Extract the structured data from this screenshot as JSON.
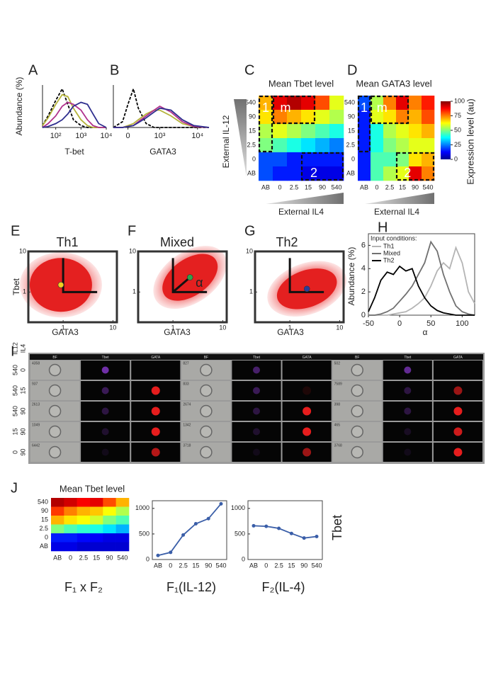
{
  "chart_data": [
    {
      "panel": "A",
      "type": "line",
      "xlabel": "T-bet",
      "ylabel": "Abundance (%)",
      "xscale": "log",
      "x": [
        30,
        50,
        100,
        180,
        300,
        500,
        1000,
        1800,
        3000,
        5000,
        10000
      ],
      "xlim": [
        30,
        10000
      ],
      "xticks": [
        {
          "value": 100,
          "label": "10²"
        },
        {
          "value": 1000,
          "label": "10³"
        },
        {
          "value": 10000,
          "label": "10⁴"
        }
      ],
      "ylim": [
        0,
        2.2
      ],
      "series": [
        {
          "color": "#000000",
          "dash": true,
          "values": [
            0.1,
            0.6,
            1.4,
            2.0,
            1.2,
            0.4,
            0.1,
            0,
            0,
            0,
            0
          ]
        },
        {
          "color": "#b5b33a",
          "values": [
            0.1,
            0.5,
            1.2,
            1.7,
            1.6,
            1.0,
            0.4,
            0.1,
            0,
            0,
            0
          ]
        },
        {
          "color": "#b0308c",
          "values": [
            0,
            0.2,
            0.6,
            1.1,
            1.3,
            1.2,
            0.9,
            0.4,
            0.1,
            0,
            0
          ]
        },
        {
          "color": "#2e2e8e",
          "values": [
            0,
            0.05,
            0.2,
            0.4,
            0.7,
            1.1,
            1.3,
            1.2,
            0.7,
            0.2,
            0
          ]
        }
      ]
    },
    {
      "panel": "B",
      "type": "line",
      "xlabel": "GATA3",
      "xscale": "asinh",
      "x": [
        -300,
        -100,
        0,
        100,
        200,
        400,
        700,
        1000,
        2000,
        4000,
        8000,
        20000
      ],
      "xlim": [
        -300,
        20000
      ],
      "xticks": [
        0,
        {
          "value": 1000,
          "label": "10³"
        },
        {
          "value": 10000,
          "label": "10⁴"
        }
      ],
      "ylim": [
        0,
        2.2
      ],
      "series": [
        {
          "color": "#000000",
          "dash": true,
          "values": [
            0,
            0.3,
            1.2,
            2.0,
            1.0,
            0.2,
            0,
            0,
            0,
            0,
            0,
            0
          ]
        },
        {
          "color": "#b5b33a",
          "values": [
            0,
            0,
            0.1,
            0.2,
            0.4,
            0.7,
            0.9,
            0.9,
            0.6,
            0.2,
            0.05,
            0
          ]
        },
        {
          "color": "#b0308c",
          "values": [
            0,
            0,
            0.05,
            0.1,
            0.3,
            0.6,
            0.9,
            1.1,
            0.8,
            0.3,
            0.05,
            0
          ]
        },
        {
          "color": "#2e2e8e",
          "values": [
            0,
            0,
            0.05,
            0.1,
            0.25,
            0.5,
            0.8,
            1.0,
            0.9,
            0.4,
            0.1,
            0
          ]
        }
      ]
    },
    {
      "panel": "C",
      "type": "heatmap",
      "title": "Mean Tbet level",
      "ylabel": "External IL-12",
      "xlabel": "External IL4",
      "rows": [
        "540",
        "90",
        "15",
        "2.5",
        "0",
        "AB"
      ],
      "columns": [
        "AB",
        "0",
        "2.5",
        "15",
        "90",
        "540"
      ],
      "zlim": [
        0,
        100
      ],
      "values": [
        [
          70,
          90,
          95,
          90,
          80,
          60
        ],
        [
          65,
          75,
          70,
          65,
          60,
          55
        ],
        [
          55,
          60,
          55,
          50,
          45,
          40
        ],
        [
          50,
          45,
          40,
          35,
          30,
          25
        ],
        [
          20,
          20,
          15,
          15,
          15,
          15
        ],
        [
          20,
          15,
          15,
          10,
          10,
          10
        ]
      ],
      "boxes": [
        {
          "label": "1",
          "rows": [
            0,
            3
          ],
          "cols": [
            0,
            0
          ]
        },
        {
          "label": "m",
          "rows": [
            0,
            1
          ],
          "cols": [
            1,
            3
          ]
        },
        {
          "label": "2",
          "rows": [
            4,
            5
          ],
          "cols": [
            3,
            5
          ]
        }
      ]
    },
    {
      "panel": "D",
      "type": "heatmap",
      "title": "Mean GATA3 level",
      "xlabel": "External IL4",
      "rows": [
        "540",
        "90",
        "15",
        "2.5",
        "0",
        "AB"
      ],
      "columns": [
        "AB",
        "0",
        "2.5",
        "15",
        "90",
        "540"
      ],
      "zlim": [
        0,
        100
      ],
      "values": [
        [
          20,
          55,
          75,
          90,
          75,
          85
        ],
        [
          15,
          60,
          65,
          75,
          70,
          80
        ],
        [
          15,
          40,
          55,
          60,
          65,
          70
        ],
        [
          15,
          40,
          50,
          55,
          60,
          60
        ],
        [
          15,
          45,
          45,
          50,
          65,
          70
        ],
        [
          15,
          45,
          55,
          60,
          90,
          75
        ]
      ],
      "boxes": [
        {
          "label": "1",
          "rows": [
            0,
            3
          ],
          "cols": [
            0,
            0
          ]
        },
        {
          "label": "m",
          "rows": [
            0,
            1
          ],
          "cols": [
            1,
            3
          ]
        },
        {
          "label": "2",
          "rows": [
            4,
            5
          ],
          "cols": [
            3,
            5
          ]
        }
      ],
      "colorbar": {
        "label": "Expression level (au)",
        "ticks": [
          0,
          25,
          50,
          75,
          100
        ]
      }
    },
    {
      "panel": "E",
      "type": "scatter",
      "title": "Th1",
      "xlabel": "GATA3",
      "ylabel": "Tbet",
      "xscale": "log",
      "yscale": "log",
      "xlim": [
        0.2,
        12
      ],
      "ylim": [
        0.18,
        10
      ],
      "xticks": [
        1,
        10
      ],
      "yticks": [
        1,
        10
      ],
      "mean": {
        "x": 0.9,
        "y": 1.5,
        "color": "#f0d020"
      }
    },
    {
      "panel": "F",
      "type": "scatter",
      "title": "Mixed",
      "xlabel": "GATA3",
      "xscale": "log",
      "yscale": "log",
      "annotation": "α",
      "xlim": [
        0.2,
        12
      ],
      "ylim": [
        0.18,
        10
      ],
      "xticks": [
        1,
        10
      ],
      "yticks": [
        1,
        10
      ],
      "mean": {
        "x": 2.2,
        "y": 2.3,
        "color": "#2fa34a"
      }
    },
    {
      "panel": "G",
      "type": "scatter",
      "title": "Th2",
      "xlabel": "GATA3",
      "xscale": "log",
      "yscale": "log",
      "xlim": [
        0.2,
        12
      ],
      "ylim": [
        0.18,
        10
      ],
      "xticks": [
        1,
        10
      ],
      "yticks": [
        1,
        10
      ],
      "mean": {
        "x": 2.2,
        "y": 1.2,
        "color": "#2a3d9a"
      }
    },
    {
      "panel": "H",
      "type": "line",
      "xlabel": "α",
      "ylabel": "Abundance (%)",
      "legend_title": "Input conditions:",
      "x": [
        -50,
        -40,
        -30,
        -20,
        -10,
        0,
        10,
        20,
        30,
        40,
        50,
        60,
        70,
        80,
        90,
        100,
        110,
        120
      ],
      "xlim": [
        -50,
        120
      ],
      "xticks": [
        -50,
        0,
        50,
        100
      ],
      "ylim": [
        0,
        7
      ],
      "yticks": [
        0,
        2,
        4,
        6
      ],
      "series": [
        {
          "name": "Th1",
          "color": "#b4b4b4",
          "values": [
            0,
            0,
            0,
            0,
            0.1,
            0.2,
            0.3,
            0.6,
            1.0,
            1.5,
            2.5,
            3.8,
            4.5,
            4.0,
            5.8,
            4.5,
            2.0,
            1.0
          ]
        },
        {
          "name": "Mixed",
          "color": "#707070",
          "values": [
            0,
            0,
            0.1,
            0.3,
            0.6,
            1.2,
            1.8,
            2.5,
            3.5,
            4.5,
            6.3,
            5.5,
            3.5,
            2.0,
            0.8,
            0.3,
            0.1,
            0
          ]
        },
        {
          "name": "Th2",
          "color": "#000000",
          "values": [
            0.3,
            1.5,
            3.0,
            3.7,
            3.5,
            4.2,
            3.8,
            4.0,
            2.5,
            1.5,
            0.8,
            0.4,
            0.2,
            0.1,
            0,
            0,
            0,
            0
          ]
        }
      ]
    },
    {
      "panel": "J",
      "type": "heatmap",
      "title": "Mean Tbet level",
      "caption": "F₁ x F₂",
      "rows": [
        "540",
        "90",
        "15",
        "2.5",
        "0",
        "AB"
      ],
      "columns": [
        "AB",
        "0",
        "2.5",
        "15",
        "90",
        "540"
      ],
      "zlim": [
        0,
        100
      ],
      "values": [
        [
          95,
          92,
          88,
          90,
          80,
          70
        ],
        [
          82,
          75,
          70,
          68,
          62,
          55
        ],
        [
          70,
          65,
          62,
          58,
          50,
          45
        ],
        [
          50,
          45,
          42,
          40,
          35,
          30
        ],
        [
          15,
          15,
          13,
          12,
          10,
          10
        ],
        [
          10,
          10,
          8,
          8,
          8,
          8
        ]
      ]
    },
    {
      "type": "line",
      "caption": "F₁(IL-12)",
      "markers": true,
      "categories": [
        "AB",
        "0",
        "2.5",
        "15",
        "90",
        "540"
      ],
      "ylim": [
        0,
        1150
      ],
      "yticks": [
        0,
        500,
        1000
      ],
      "series": [
        {
          "color": "#3a5ea8",
          "values": [
            80,
            140,
            480,
            700,
            800,
            1090
          ]
        }
      ]
    },
    {
      "type": "line",
      "caption": "F₂(IL-4)",
      "ylabel": "Tbet",
      "markers": true,
      "categories": [
        "AB",
        "0",
        "2.5",
        "15",
        "90",
        "540"
      ],
      "ylim": [
        0,
        1150
      ],
      "yticks": [
        0,
        500,
        1000
      ],
      "series": [
        {
          "color": "#3a5ea8",
          "values": [
            660,
            650,
            610,
            510,
            420,
            450
          ]
        }
      ]
    }
  ],
  "image_grid": {
    "panel": "I",
    "row_header": [
      "IL12",
      "IL4"
    ],
    "columns": [
      "BF",
      "Tbet",
      "GATA",
      "BF",
      "Tbet",
      "GATA",
      "BF",
      "Tbet",
      "GATA"
    ],
    "rows": [
      {
        "il12": "540",
        "il4": "0",
        "ids": [
          4358,
          827,
          502
        ],
        "tbet": [
          0.8,
          0.5,
          0.7
        ],
        "gata": [
          0,
          0,
          0
        ]
      },
      {
        "il12": "540",
        "il4": "15",
        "ids": [
          937,
          833,
          7589
        ],
        "tbet": [
          0.4,
          0.4,
          0.3
        ],
        "gata": [
          0.9,
          0.1,
          0.6
        ]
      },
      {
        "il12": "540",
        "il4": "90",
        "ids": [
          2613,
          2674,
          398
        ],
        "tbet": [
          0.3,
          0.3,
          0.3
        ],
        "gata": [
          0.9,
          0.9,
          0.9
        ]
      },
      {
        "il12": "15",
        "il4": "90",
        "ids": [
          1049,
          1342,
          465
        ],
        "tbet": [
          0.2,
          0.2,
          0.15
        ],
        "gata": [
          0.9,
          0.9,
          0.8
        ]
      },
      {
        "il12": "0",
        "il4": "90",
        "ids": [
          6442,
          3718,
          3768
        ],
        "tbet": [
          0.1,
          0.1,
          0.1
        ],
        "gata": [
          0.7,
          0.6,
          0.9
        ]
      }
    ]
  }
}
